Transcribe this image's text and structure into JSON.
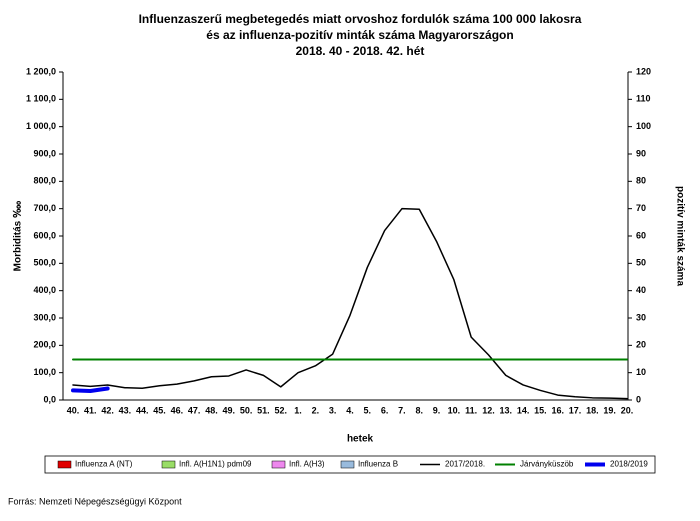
{
  "chart_data": {
    "type": "line",
    "title": [
      "Influenzaszerű megbetegedés miatt orvoshoz fordulók száma 100 000 lakosra",
      "és az influenza-pozitív minták száma Magyarországon",
      "2018. 40 - 2018. 42. hét"
    ],
    "xlabel": "hetek",
    "ylabel": "Morbiditás ‱",
    "y2label": "pozitív minták száma",
    "source": "Forrás: Nemzeti Népegészségügyi Központ",
    "categories": [
      "40.",
      "41.",
      "42.",
      "43.",
      "44.",
      "45.",
      "46.",
      "47.",
      "48.",
      "49.",
      "50.",
      "51.",
      "52.",
      "1.",
      "2.",
      "3.",
      "4.",
      "5.",
      "6.",
      "7.",
      "8.",
      "9.",
      "10.",
      "11.",
      "12.",
      "13.",
      "14.",
      "15.",
      "16.",
      "17.",
      "18.",
      "19.",
      "20."
    ],
    "ylim": [
      0,
      1200
    ],
    "yticks": [
      {
        "value": 0,
        "label": "0,0"
      },
      {
        "value": 100,
        "label": "100,0"
      },
      {
        "value": 200,
        "label": "200,0"
      },
      {
        "value": 300,
        "label": "300,0"
      },
      {
        "value": 400,
        "label": "400,0"
      },
      {
        "value": 500,
        "label": "500,0"
      },
      {
        "value": 600,
        "label": "600,0"
      },
      {
        "value": 700,
        "label": "700,0"
      },
      {
        "value": 800,
        "label": "800,0"
      },
      {
        "value": 900,
        "label": "900,0"
      },
      {
        "value": 1000,
        "label": "1 000,0"
      },
      {
        "value": 1100,
        "label": "1 100,0"
      },
      {
        "value": 1200,
        "label": "1 200,0"
      }
    ],
    "y2lim": [
      0,
      120
    ],
    "y2ticks": [
      0,
      10,
      20,
      30,
      40,
      50,
      60,
      70,
      80,
      90,
      100,
      110,
      120
    ],
    "series": [
      {
        "name": "Influenza A (NT)",
        "type": "bar",
        "axis": "y2",
        "color": "#e00000",
        "values": [
          null,
          null,
          null,
          null,
          null,
          null,
          null,
          null,
          null,
          null,
          null,
          null,
          null,
          null,
          null,
          null,
          null,
          null,
          null,
          null,
          null,
          null,
          null,
          null,
          null,
          null,
          null,
          null,
          null,
          null,
          null,
          null,
          null
        ]
      },
      {
        "name": "Infl. A(H1N1) pdm09",
        "type": "bar",
        "axis": "y2",
        "color": "#99dd66",
        "values": [
          null,
          null,
          null,
          null,
          null,
          null,
          null,
          null,
          null,
          null,
          null,
          null,
          null,
          null,
          null,
          null,
          null,
          null,
          null,
          null,
          null,
          null,
          null,
          null,
          null,
          null,
          null,
          null,
          null,
          null,
          null,
          null,
          null
        ]
      },
      {
        "name": "Infl. A(H3)",
        "type": "bar",
        "axis": "y2",
        "color": "#ee88ee",
        "values": [
          null,
          null,
          null,
          null,
          null,
          null,
          null,
          null,
          null,
          null,
          null,
          null,
          null,
          null,
          null,
          null,
          null,
          null,
          null,
          null,
          null,
          null,
          null,
          null,
          null,
          null,
          null,
          null,
          null,
          null,
          null,
          null,
          null
        ]
      },
      {
        "name": "Influenza B",
        "type": "bar",
        "axis": "y2",
        "color": "#99bbdd",
        "values": [
          null,
          null,
          null,
          null,
          null,
          null,
          null,
          null,
          null,
          null,
          null,
          null,
          null,
          null,
          null,
          null,
          null,
          null,
          null,
          null,
          null,
          null,
          null,
          null,
          null,
          null,
          null,
          null,
          null,
          null,
          null,
          null,
          null
        ]
      },
      {
        "name": "2017/2018.",
        "type": "line",
        "color": "#000000",
        "width": 1.5,
        "values": [
          55,
          50,
          55,
          45,
          43,
          52,
          58,
          70,
          85,
          88,
          110,
          90,
          48,
          100,
          125,
          168,
          310,
          485,
          620,
          700,
          698,
          580,
          440,
          230,
          165,
          90,
          55,
          35,
          18,
          12,
          8,
          7,
          5
        ]
      },
      {
        "name": "Járványküszöb",
        "type": "line",
        "color": "#008000",
        "width": 2,
        "values": [
          148,
          148,
          148,
          148,
          148,
          148,
          148,
          148,
          148,
          148,
          148,
          148,
          148,
          148,
          148,
          148,
          148,
          148,
          148,
          148,
          148,
          148,
          148,
          148,
          148,
          148,
          148,
          148,
          148,
          148,
          148,
          148,
          148
        ]
      },
      {
        "name": "2018/2019",
        "type": "line",
        "color": "#0000ee",
        "width": 4,
        "values": [
          35,
          33,
          42,
          null,
          null,
          null,
          null,
          null,
          null,
          null,
          null,
          null,
          null,
          null,
          null,
          null,
          null,
          null,
          null,
          null,
          null,
          null,
          null,
          null,
          null,
          null,
          null,
          null,
          null,
          null,
          null,
          null,
          null
        ]
      }
    ]
  }
}
